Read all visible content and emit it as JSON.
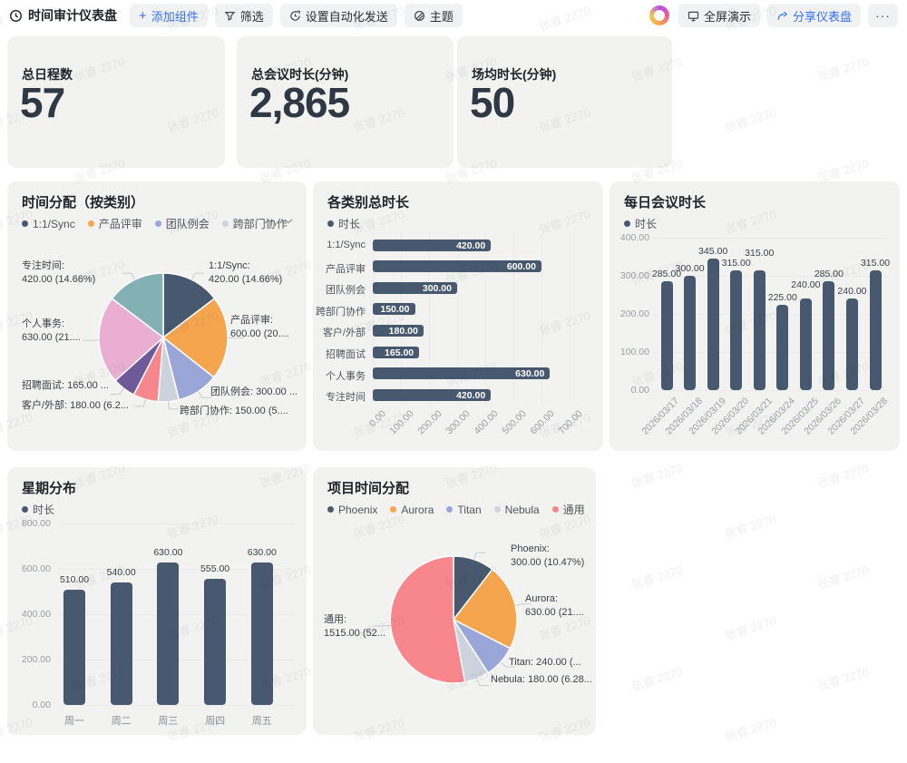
{
  "watermark": {
    "text": "张睿 2270"
  },
  "toolbar": {
    "title": "时间审计仪表盘",
    "buttons": {
      "add_widget": "添加组件",
      "filter": "筛选",
      "automation": "设置自动化发送",
      "theme": "主题",
      "fullscreen": "全屏演示",
      "share": "分享仪表盘",
      "more": "···"
    }
  },
  "kpis": [
    {
      "label": "总日程数",
      "value": "57"
    },
    {
      "label": "总会议时长(分钟)",
      "value": "2,865"
    },
    {
      "label": "场均时长(分钟)",
      "value": "50"
    }
  ],
  "colors": {
    "series": [
      "#48586e",
      "#f6a54f",
      "#9aa6d8",
      "#ccd3dc",
      "#f8878d",
      "#6f5a99",
      "#e9aed1",
      "#83b1b3"
    ],
    "accent_blue": "#3370ff",
    "card_bg": "#f2f2f1"
  },
  "chart_data": [
    {
      "id": "time-by-category-pie",
      "type": "pie",
      "title": "时间分配（按类别）",
      "legend": [
        "1:1/Sync",
        "产品评审",
        "团队例会",
        "跨部门协作"
      ],
      "legend_paged": true,
      "slices": [
        {
          "name": "1:1/Sync",
          "value": 420,
          "pct": "14.66%",
          "callout": [
            "1:1/Sync:",
            "420.00 (14.66%)"
          ]
        },
        {
          "name": "产品评审",
          "value": 600,
          "pct": "20.94%",
          "callout": [
            "产品评审:",
            "600.00 (20...."
          ]
        },
        {
          "name": "团队例会",
          "value": 300,
          "pct": "10.47%",
          "callout": [
            "团队例会: 300.00 ..."
          ]
        },
        {
          "name": "跨部门协作",
          "value": 150,
          "pct": "5.24%",
          "callout": [
            "跨部门协作: 150.00 (5...."
          ]
        },
        {
          "name": "客户/外部",
          "value": 180,
          "pct": "6.28%",
          "callout": [
            "客户/外部: 180.00 (6.2..."
          ]
        },
        {
          "name": "招聘面试",
          "value": 165,
          "pct": "5.76%",
          "callout": [
            "招聘面试: 165.00 ..."
          ]
        },
        {
          "name": "个人事务",
          "value": 630,
          "pct": "21.99%",
          "callout": [
            "个人事务:",
            "630.00 (21...."
          ]
        },
        {
          "name": "专注时间",
          "value": 420,
          "pct": "14.66%",
          "callout": [
            "专注时间:",
            "420.00 (14.66%)"
          ]
        }
      ]
    },
    {
      "id": "total-by-category-bars",
      "type": "bar-horizontal",
      "title": "各类别总时长",
      "legend": [
        "时长"
      ],
      "categories": [
        "1:1/Sync",
        "产品评审",
        "团队例会",
        "跨部门协作",
        "客户/外部",
        "招聘面试",
        "个人事务",
        "专注时间"
      ],
      "values": [
        420,
        600,
        300,
        150,
        180,
        165,
        630,
        420
      ],
      "value_labels": [
        "420.00",
        "600.00",
        "300.00",
        "150.00",
        "180.00",
        "165.00",
        "630.00",
        "420.00"
      ],
      "x_ticks": [
        "0.00",
        "100.00",
        "200.00",
        "300.00",
        "400.00",
        "500.00",
        "600.00",
        "700.00"
      ],
      "xlim": [
        0,
        700
      ]
    },
    {
      "id": "daily-meeting-bars",
      "type": "bar",
      "title": "每日会议时长",
      "legend": [
        "时长"
      ],
      "categories": [
        "2026/03/17",
        "2026/03/18",
        "2026/03/19",
        "2026/03/20",
        "2026/03/21",
        "2026/03/24",
        "2026/03/25",
        "2026/03/26",
        "2026/03/27",
        "2026/03/28"
      ],
      "values": [
        285,
        300,
        345,
        315,
        315,
        225,
        240,
        285,
        240,
        315
      ],
      "value_labels": [
        "285.00",
        "300.00",
        "345.00",
        "315.00",
        "315.00",
        "225.00",
        "240.00",
        "285.00",
        "240.00",
        "315.00"
      ],
      "y_ticks": [
        "400.00",
        "300.00",
        "200.00",
        "100.00",
        "0.00"
      ],
      "ylim": [
        0,
        400
      ]
    },
    {
      "id": "weekday-bars",
      "type": "bar",
      "title": "星期分布",
      "legend": [
        "时长"
      ],
      "categories": [
        "周一",
        "周二",
        "周三",
        "周四",
        "周五"
      ],
      "values": [
        510,
        540,
        630,
        555,
        630
      ],
      "value_labels": [
        "510.00",
        "540.00",
        "630.00",
        "555.00",
        "630.00"
      ],
      "y_ticks": [
        "800.00",
        "600.00",
        "400.00",
        "200.00",
        "0.00"
      ],
      "ylim": [
        0,
        800
      ]
    },
    {
      "id": "project-pie",
      "type": "pie",
      "title": "项目时间分配",
      "legend": [
        "Phoenix",
        "Aurora",
        "Titan",
        "Nebula",
        "通用"
      ],
      "legend_paged": false,
      "slices": [
        {
          "name": "Phoenix",
          "value": 300,
          "pct": "10.47%",
          "callout": [
            "Phoenix:",
            "300.00 (10.47%)"
          ]
        },
        {
          "name": "Aurora",
          "value": 630,
          "pct": "21.99%",
          "callout": [
            "Aurora:",
            "630.00 (21...."
          ]
        },
        {
          "name": "Titan",
          "value": 240,
          "pct": "8.38%",
          "callout": [
            "Titan: 240.00 (..."
          ]
        },
        {
          "name": "Nebula",
          "value": 180,
          "pct": "6.28%",
          "callout": [
            "Nebula: 180.00 (6.28..."
          ]
        },
        {
          "name": "通用",
          "value": 1515,
          "pct": "52.88%",
          "callout": [
            "通用:",
            "1515.00 (52..."
          ]
        }
      ]
    }
  ]
}
